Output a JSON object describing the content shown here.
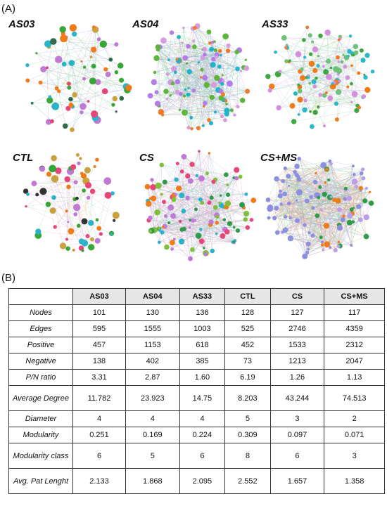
{
  "panel_a_label": "(A)",
  "panel_b_label": "(B)",
  "networks": [
    {
      "id": "as03",
      "title": "AS03",
      "palette": [
        "#c07ad6",
        "#2bb3c9",
        "#37a837",
        "#ef7b1a",
        "#2e6b4f",
        "#e8457a",
        "#c9a23f"
      ],
      "edge_colors": [
        "#7fd0c5",
        "#b9a2dd",
        "#a8d88a"
      ],
      "density": "sparse"
    },
    {
      "id": "as04",
      "title": "AS04",
      "palette": [
        "#d99be0",
        "#1fb4c8",
        "#5fb53a",
        "#f07a2c",
        "#b57be8"
      ],
      "edge_colors": [
        "#9ccf8c",
        "#d5a3dd",
        "#7fc5d5"
      ],
      "density": "dense"
    },
    {
      "id": "as33",
      "title": "AS33",
      "palette": [
        "#d58fdf",
        "#2bb8cc",
        "#3ea83e",
        "#ef7b1a",
        "#6fc27a"
      ],
      "edge_colors": [
        "#a0d7d0",
        "#d5b2e0",
        "#b5dc9d"
      ],
      "density": "medium"
    },
    {
      "id": "ctl",
      "title": "CTL",
      "palette": [
        "#e8457a",
        "#2bb3c9",
        "#37a837",
        "#c07ad6",
        "#333333",
        "#ef7b1a",
        "#c9a23f"
      ],
      "edge_colors": [
        "#d7b4df",
        "#a9dcc9",
        "#f0c0a0"
      ],
      "density": "sparse"
    },
    {
      "id": "cs",
      "title": "CS",
      "palette": [
        "#2d9c4a",
        "#c07ad6",
        "#e8457a",
        "#2bb3c9",
        "#7fbf3a",
        "#ef7b1a"
      ],
      "edge_colors": [
        "#8fd2c0",
        "#c9a6e0",
        "#e4a9b9"
      ],
      "density": "dense"
    },
    {
      "id": "csms",
      "title": "CS+MS",
      "palette": [
        "#8d8fe0",
        "#2d9c4a",
        "#ef7b1a",
        "#b9a0e8"
      ],
      "edge_colors": [
        "#a9a9ec",
        "#f0a47a",
        "#8fd0a0"
      ],
      "density": "very-dense"
    }
  ],
  "table": {
    "columns": [
      "AS03",
      "AS04",
      "AS33",
      "CTL",
      "CS",
      "CS+MS"
    ],
    "rows": [
      {
        "label": "Nodes",
        "values": [
          "101",
          "130",
          "136",
          "128",
          "127",
          "117"
        ],
        "tall": false
      },
      {
        "label": "Edges",
        "values": [
          "595",
          "1555",
          "1003",
          "525",
          "2746",
          "4359"
        ],
        "tall": false
      },
      {
        "label": "Positive",
        "values": [
          "457",
          "1153",
          "618",
          "452",
          "1533",
          "2312"
        ],
        "tall": false
      },
      {
        "label": "Negative",
        "values": [
          "138",
          "402",
          "385",
          "73",
          "1213",
          "2047"
        ],
        "tall": false
      },
      {
        "label": "P/N ratio",
        "values": [
          "3.31",
          "2.87",
          "1.60",
          "6.19",
          "1.26",
          "1.13"
        ],
        "tall": false
      },
      {
        "label": "Average Degree",
        "values": [
          "11.782",
          "23.923",
          "14.75",
          "8.203",
          "43.244",
          "74.513"
        ],
        "tall": true
      },
      {
        "label": "Diameter",
        "values": [
          "4",
          "4",
          "4",
          "5",
          "3",
          "2"
        ],
        "tall": false
      },
      {
        "label": "Modularity",
        "values": [
          "0.251",
          "0.169",
          "0.224",
          "0.309",
          "0.097",
          "0.071"
        ],
        "tall": false
      },
      {
        "label": "Modularity class",
        "values": [
          "6",
          "5",
          "6",
          "8",
          "6",
          "3"
        ],
        "tall": true
      },
      {
        "label": "Avg. Pat Lenght",
        "values": [
          "2.133",
          "1.868",
          "2.095",
          "2.552",
          "1.657",
          "1.358"
        ],
        "tall": true
      }
    ]
  }
}
